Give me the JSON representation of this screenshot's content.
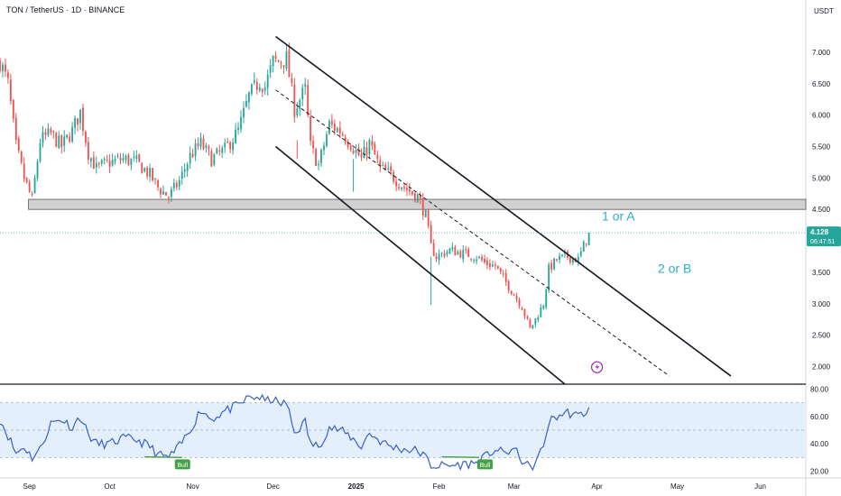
{
  "symbol_header": "TON / TetherUS · 1D · BINANCE",
  "currency": "USDT",
  "colors": {
    "up": "#26a69a",
    "down": "#ef5350",
    "rsi_line": "#3b5fc7",
    "rsi_band": "#e3f0fb",
    "last_price": "#26a69a",
    "annotation": "#2ab0c4",
    "bull_badge": "#43a047",
    "zone": "#c9c9c9"
  },
  "chart_data": [
    {
      "type": "candlestick",
      "symbol": "TON / TetherUS",
      "interval": "1D",
      "exchange": "BINANCE",
      "x_labels": [
        "Sep",
        "Oct",
        "Nov",
        "Dec",
        "2025",
        "Feb",
        "Mar",
        "Apr",
        "May",
        "Jun"
      ],
      "x_label_days": [
        0,
        30,
        61,
        91,
        122,
        153,
        181,
        212,
        242,
        273
      ],
      "y_ticks": [
        "7.000",
        "6.500",
        "6.000",
        "5.500",
        "5.000",
        "4.500",
        "3.500",
        "3.000",
        "2.500",
        "2.000"
      ],
      "y_tick_values": [
        7.0,
        6.5,
        6.0,
        5.5,
        5.0,
        4.5,
        3.5,
        3.0,
        2.5,
        2.0
      ],
      "ylim": [
        1.72,
        7.63
      ],
      "xlim_days": [
        -11,
        290
      ],
      "last_price": "4.128",
      "last_price_value": 4.128,
      "countdown": "06:47:51",
      "anchor_closes": [
        [
          -11,
          6.85
        ],
        [
          -8,
          6.5
        ],
        [
          -5,
          5.5
        ],
        [
          -2,
          5.0
        ],
        [
          1,
          4.65
        ],
        [
          4,
          5.6
        ],
        [
          8,
          5.7
        ],
        [
          12,
          5.5
        ],
        [
          16,
          5.75
        ],
        [
          19,
          6.05
        ],
        [
          22,
          5.4
        ],
        [
          25,
          5.15
        ],
        [
          30,
          5.25
        ],
        [
          35,
          5.3
        ],
        [
          40,
          5.25
        ],
        [
          45,
          5.05
        ],
        [
          48,
          4.85
        ],
        [
          52,
          4.7
        ],
        [
          56,
          4.95
        ],
        [
          60,
          5.35
        ],
        [
          64,
          5.55
        ],
        [
          68,
          5.3
        ],
        [
          73,
          5.45
        ],
        [
          78,
          5.75
        ],
        [
          82,
          6.3
        ],
        [
          86,
          6.55
        ],
        [
          88,
          6.45
        ],
        [
          91,
          6.85
        ],
        [
          93,
          6.85
        ],
        [
          96,
          6.9
        ],
        [
          99,
          6.1
        ],
        [
          103,
          6.4
        ],
        [
          105,
          5.5
        ],
        [
          108,
          5.2
        ],
        [
          112,
          5.85
        ],
        [
          116,
          5.75
        ],
        [
          120,
          5.55
        ],
        [
          124,
          5.3
        ],
        [
          127,
          5.55
        ],
        [
          131,
          5.15
        ],
        [
          135,
          5.05
        ],
        [
          140,
          4.85
        ],
        [
          145,
          4.7
        ],
        [
          148,
          4.4
        ],
        [
          150,
          3.9
        ],
        [
          152,
          3.75
        ],
        [
          157,
          3.85
        ],
        [
          162,
          3.8
        ],
        [
          167,
          3.75
        ],
        [
          170,
          3.65
        ],
        [
          174,
          3.6
        ],
        [
          177,
          3.4
        ],
        [
          181,
          3.15
        ],
        [
          184,
          2.95
        ],
        [
          187,
          2.6
        ],
        [
          189,
          2.75
        ],
        [
          192,
          3.0
        ],
        [
          194,
          3.55
        ],
        [
          197,
          3.7
        ],
        [
          201,
          3.75
        ],
        [
          205,
          3.7
        ],
        [
          209,
          4.128
        ]
      ],
      "support_zone": [
        4.5,
        4.66
      ],
      "channel": {
        "upper": [
          [
            92,
            7.25
          ],
          [
            262,
            1.85
          ]
        ],
        "lower": [
          [
            92,
            5.5
          ],
          [
            200,
            1.72
          ]
        ],
        "mid": [
          [
            92,
            6.4
          ],
          [
            239,
            1.85
          ]
        ]
      },
      "annotations": [
        "1 or A",
        "2 or B"
      ]
    },
    {
      "type": "line",
      "name": "RSI",
      "y_ticks": [
        "80.00",
        "60.00",
        "40.00",
        "20.00"
      ],
      "y_tick_values": [
        80,
        60,
        40,
        20
      ],
      "ylim": [
        15,
        83
      ],
      "band": [
        30,
        70
      ],
      "midline": 50,
      "points": [
        [
          -11,
          58
        ],
        [
          -8,
          46
        ],
        [
          -5,
          33
        ],
        [
          -2,
          38
        ],
        [
          1,
          30
        ],
        [
          4,
          36
        ],
        [
          8,
          55
        ],
        [
          12,
          58
        ],
        [
          16,
          52
        ],
        [
          19,
          60
        ],
        [
          22,
          47
        ],
        [
          25,
          40
        ],
        [
          30,
          40
        ],
        [
          35,
          44
        ],
        [
          40,
          43
        ],
        [
          45,
          38
        ],
        [
          48,
          32
        ],
        [
          52,
          30
        ],
        [
          56,
          38
        ],
        [
          60,
          50
        ],
        [
          64,
          65
        ],
        [
          68,
          58
        ],
        [
          73,
          64
        ],
        [
          78,
          68
        ],
        [
          82,
          74
        ],
        [
          86,
          74
        ],
        [
          88,
          71
        ],
        [
          91,
          73
        ],
        [
          93,
          69
        ],
        [
          96,
          70
        ],
        [
          99,
          48
        ],
        [
          103,
          56
        ],
        [
          105,
          40
        ],
        [
          108,
          38
        ],
        [
          112,
          52
        ],
        [
          116,
          50
        ],
        [
          120,
          45
        ],
        [
          124,
          38
        ],
        [
          127,
          48
        ],
        [
          131,
          42
        ],
        [
          135,
          38
        ],
        [
          140,
          36
        ],
        [
          145,
          35
        ],
        [
          148,
          30
        ],
        [
          150,
          24
        ],
        [
          152,
          24
        ],
        [
          157,
          24
        ],
        [
          162,
          25
        ],
        [
          167,
          26
        ],
        [
          170,
          30
        ],
        [
          174,
          36
        ],
        [
          177,
          33
        ],
        [
          181,
          36
        ],
        [
          184,
          28
        ],
        [
          187,
          22
        ],
        [
          189,
          26
        ],
        [
          192,
          38
        ],
        [
          194,
          56
        ],
        [
          197,
          60
        ],
        [
          201,
          63
        ],
        [
          205,
          60
        ],
        [
          209,
          65
        ]
      ],
      "divergence_markers": [
        "Bull",
        "Bull"
      ]
    }
  ]
}
